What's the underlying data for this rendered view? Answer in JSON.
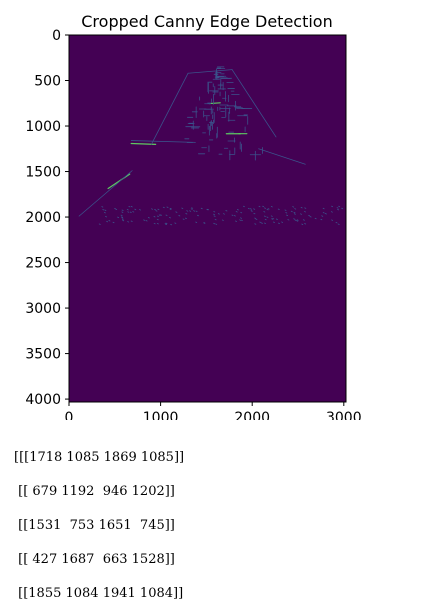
{
  "chart_data": {
    "type": "heatmap",
    "title": "Cropped Canny Edge Detection",
    "xlabel": "",
    "ylabel": "",
    "xlim": [
      0,
      3024
    ],
    "ylim": [
      4032,
      0
    ],
    "x_ticks": [
      0,
      1000,
      2000,
      3000
    ],
    "y_ticks": [
      0,
      500,
      1000,
      1500,
      2000,
      2500,
      3000,
      3500,
      4000
    ],
    "x_tick_labels": [
      "0",
      "1000",
      "2000",
      "3000"
    ],
    "y_tick_labels": [
      "0",
      "500",
      "1000",
      "1500",
      "2000",
      "2500",
      "3000",
      "3500",
      "4000"
    ],
    "colors": {
      "background": "#440154",
      "edge": "#3b528b",
      "edge_bright": "#5ec962"
    },
    "edge_segments": [
      [
        1718,
        1085,
        1869,
        1085
      ],
      [
        679,
        1192,
        946,
        1202
      ],
      [
        1531,
        753,
        1651,
        745
      ],
      [
        427,
        1687,
        663,
        1528
      ],
      [
        1855,
        1084,
        1941,
        1084
      ]
    ]
  },
  "console_output": [
    "[[[1718 1085 1869 1085]]",
    " [[ 679 1192  946 1202]]",
    " [[1531  753 1651  745]]",
    " [[ 427 1687  663 1528]]",
    " [[1855 1084 1941 1084]]"
  ]
}
